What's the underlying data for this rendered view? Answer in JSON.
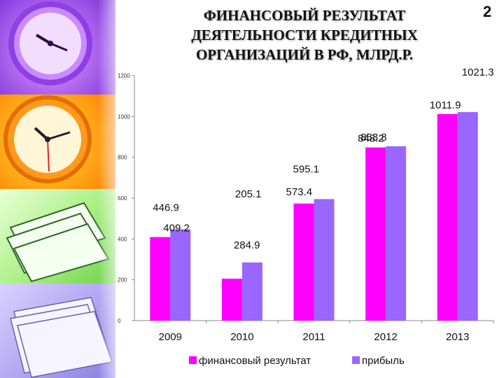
{
  "slide_number": "2",
  "title_lines": [
    "ФИНАНСОВЫЙ РЕЗУЛЬТАТ",
    "ДЕЯТЕЛЬНОСТИ КРЕДИТНЫХ",
    "ОРГАНИЗАЦИЙ В РФ, МЛРД.Р."
  ],
  "colors": {
    "series1": "#ff00ff",
    "series2": "#9966ff",
    "axis": "#888888"
  },
  "decor": [
    "clock-purple-icon",
    "clock-orange-icon",
    "papers-green-icon",
    "papers-lavender-icon"
  ],
  "chart_data": {
    "type": "bar",
    "categories": [
      "2009",
      "2010",
      "2011",
      "2012",
      "2013"
    ],
    "series": [
      {
        "name": "финансовый результат",
        "values": [
          409.2,
          205.1,
          573.4,
          848.2,
          1011.9
        ]
      },
      {
        "name": "прибыль",
        "values": [
          446.9,
          284.9,
          595.1,
          853.8,
          1021.3
        ]
      }
    ],
    "data_labels": [
      [
        "409.2",
        "205.1",
        "573.4",
        "848.2",
        "1011.9"
      ],
      [
        "446.9",
        "284.9",
        "595.1",
        "853.8",
        "1021.3"
      ]
    ],
    "yticks": [
      "0",
      "200",
      "400",
      "600",
      "800",
      "1000",
      "1200"
    ],
    "ylim": [
      0,
      1200
    ],
    "grid": false,
    "legend_position": "bottom"
  }
}
